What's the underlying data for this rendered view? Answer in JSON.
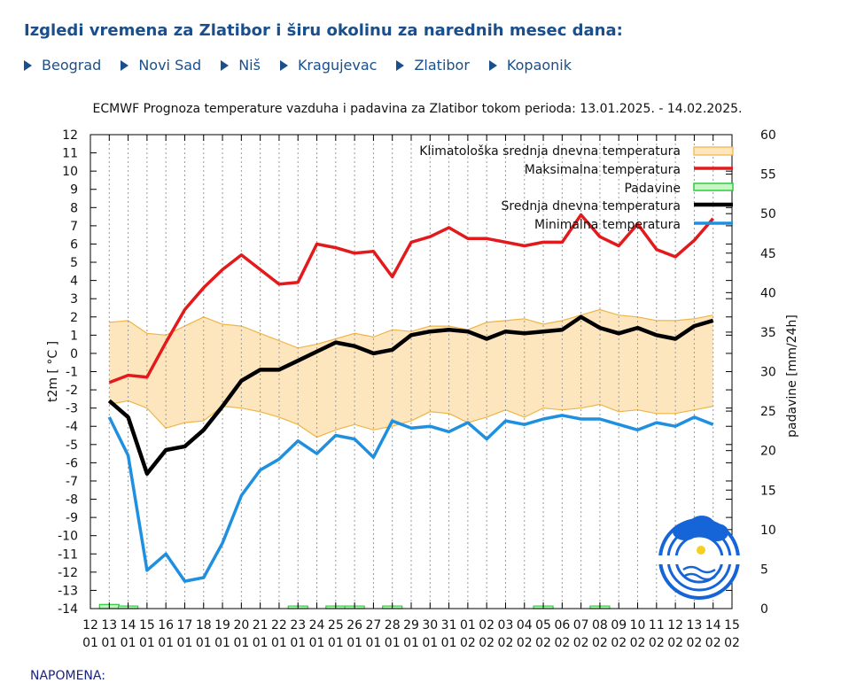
{
  "header": {
    "title": "Izgledi vremena za Zlatibor i širu okolinu za narednih mesec dana:"
  },
  "nav": {
    "items": [
      {
        "label": "Beograd"
      },
      {
        "label": "Novi Sad"
      },
      {
        "label": "Niš"
      },
      {
        "label": "Kragujevac"
      },
      {
        "label": "Zlatibor"
      },
      {
        "label": "Kopaonik"
      }
    ]
  },
  "colors": {
    "nav": "#1a4f8b",
    "max": "#e31a1c",
    "mean": "#000000",
    "min": "#1f8fe0",
    "precip": "#2ecc40",
    "clim_fill": "#fde6bd",
    "clim_edge": "#f0b445",
    "logo": "#1565d8"
  },
  "note": "NAPOMENA:",
  "chart_data": {
    "type": "line",
    "title": "ECMWF Prognoza temperature vazduha i padavina za Zlatibor tokom perioda: 13.01.2025. - 14.02.2025.",
    "ylabel": "t2m [ °C ]",
    "y2label": "padavine [mm/24h]",
    "ylim": [
      -14,
      12
    ],
    "y2lim": [
      0,
      60
    ],
    "yticks": [
      "12",
      "11",
      "10",
      "9",
      "8",
      "7",
      "6",
      "5",
      "4",
      "3",
      "2",
      "1",
      "0",
      "-1",
      "-2",
      "-3",
      "-4",
      "-5",
      "-6",
      "-7",
      "-8",
      "-9",
      "-10",
      "-11",
      "-12",
      "-13",
      "-14"
    ],
    "y2ticks": [
      "60",
      "55",
      "50",
      "45",
      "40",
      "35",
      "30",
      "25",
      "20",
      "15",
      "10",
      "5",
      "0"
    ],
    "x_days": [
      "12",
      "13",
      "14",
      "15",
      "16",
      "17",
      "18",
      "19",
      "20",
      "21",
      "22",
      "23",
      "24",
      "25",
      "26",
      "27",
      "28",
      "29",
      "30",
      "31",
      "01",
      "02",
      "03",
      "04",
      "05",
      "06",
      "07",
      "08",
      "09",
      "10",
      "11",
      "12",
      "13",
      "14",
      "15"
    ],
    "x_months": [
      "01",
      "01",
      "01",
      "01",
      "01",
      "01",
      "01",
      "01",
      "01",
      "01",
      "01",
      "01",
      "01",
      "01",
      "01",
      "01",
      "01",
      "01",
      "01",
      "01",
      "02",
      "02",
      "02",
      "02",
      "02",
      "02",
      "02",
      "02",
      "02",
      "02",
      "02",
      "02",
      "02",
      "02",
      "02"
    ],
    "legend": {
      "clim": "Klimatološka srednja dnevna temperatura",
      "max": "Maksimalna temperatura",
      "precip": "Padavine",
      "mean": "Srednja dnevna temperatura",
      "min": "Minimalna temperatura"
    },
    "series": [
      {
        "key": "max",
        "name": "Maksimalna temperatura",
        "values": [
          -1.6,
          -1.2,
          -1.3,
          0.6,
          2.4,
          3.6,
          4.6,
          5.4,
          4.6,
          3.8,
          3.9,
          6.0,
          5.8,
          5.5,
          5.6,
          4.2,
          6.1,
          6.4,
          6.9,
          6.3,
          6.3,
          6.1,
          5.9,
          6.1,
          6.1,
          7.6,
          6.4,
          5.9,
          7.1,
          5.7,
          5.3,
          6.2,
          7.4
        ]
      },
      {
        "key": "mean",
        "name": "Srednja dnevna temperatura",
        "values": [
          -2.6,
          -3.5,
          -6.6,
          -5.3,
          -5.1,
          -4.2,
          -2.9,
          -1.5,
          -0.9,
          -0.9,
          -0.4,
          0.1,
          0.6,
          0.4,
          0.0,
          0.2,
          1.0,
          1.2,
          1.3,
          1.2,
          0.8,
          1.2,
          1.1,
          1.2,
          1.3,
          2.0,
          1.4,
          1.1,
          1.4,
          1.0,
          0.8,
          1.5,
          1.8
        ]
      },
      {
        "key": "min",
        "name": "Minimalna temperatura",
        "values": [
          -3.5,
          -5.6,
          -11.9,
          -11.0,
          -12.5,
          -12.3,
          -10.4,
          -7.8,
          -6.4,
          -5.8,
          -4.8,
          -5.5,
          -4.5,
          -4.7,
          -5.7,
          -3.7,
          -4.1,
          -4.0,
          -4.3,
          -3.8,
          -4.7,
          -3.7,
          -3.9,
          -3.6,
          -3.4,
          -3.6,
          -3.6,
          -3.9,
          -4.2,
          -3.8,
          -4.0,
          -3.5,
          -3.9
        ]
      },
      {
        "key": "clim_upper",
        "name": "Klimatološka srednja dnevna temperatura (gornja granica)",
        "values": [
          1.7,
          1.8,
          1.1,
          1.0,
          1.5,
          2.0,
          1.6,
          1.5,
          1.1,
          0.7,
          0.3,
          0.5,
          0.8,
          1.1,
          0.9,
          1.3,
          1.2,
          1.5,
          1.5,
          1.3,
          1.7,
          1.8,
          1.9,
          1.6,
          1.8,
          2.1,
          2.4,
          2.1,
          2.0,
          1.8,
          1.8,
          1.9,
          2.1
        ]
      },
      {
        "key": "clim_lower",
        "name": "Klimatološka srednja dnevna temperatura (donja granica)",
        "values": [
          -2.8,
          -2.6,
          -3.0,
          -4.1,
          -3.8,
          -3.7,
          -2.9,
          -3.0,
          -3.2,
          -3.5,
          -3.9,
          -4.6,
          -4.2,
          -3.9,
          -4.2,
          -4.0,
          -3.7,
          -3.2,
          -3.3,
          -3.8,
          -3.5,
          -3.1,
          -3.5,
          -3.0,
          -3.1,
          -3.0,
          -2.8,
          -3.2,
          -3.1,
          -3.3,
          -3.3,
          -3.1,
          -2.9
        ]
      },
      {
        "key": "precip",
        "name": "Padavine",
        "unit": "mm/24h",
        "values": [
          0.3,
          0.1,
          0,
          0,
          0,
          0,
          0,
          0,
          0,
          0,
          0.1,
          0,
          0.1,
          0.1,
          0,
          0.1,
          0,
          0,
          0,
          0,
          0,
          0,
          0,
          0.1,
          0,
          0,
          0.1,
          0,
          0,
          0,
          0,
          0,
          0
        ]
      }
    ]
  }
}
